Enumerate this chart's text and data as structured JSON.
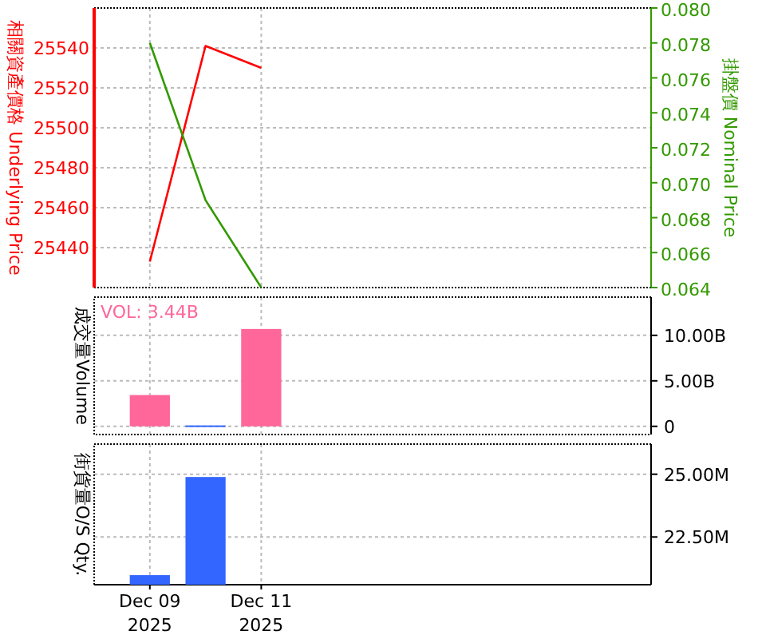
{
  "chart_data": [
    {
      "type": "line",
      "ylabel": "相關資產價格 Underlying Price",
      "y2label": "掛盤價 Nominal Price",
      "x": [
        "2025-12-09",
        "2025-12-10",
        "2025-12-11"
      ],
      "xlim": [
        "2025-12-08",
        "2025-12-18"
      ],
      "xticks": [
        {
          "value": "2025-12-09",
          "label": null
        },
        {
          "value": "2025-12-11",
          "label": null
        }
      ],
      "ylim": [
        25420,
        25560
      ],
      "yticks": [
        25440,
        25460,
        25480,
        25500,
        25520,
        25540
      ],
      "y2lim": [
        0.064,
        0.08
      ],
      "y2ticks": [
        {
          "value": 0.064,
          "label": "0.064"
        },
        {
          "value": 0.066,
          "label": "0.066"
        },
        {
          "value": 0.068,
          "label": "0.068"
        },
        {
          "value": 0.07,
          "label": "0.070"
        },
        {
          "value": 0.072,
          "label": "0.072"
        },
        {
          "value": 0.074,
          "label": "0.074"
        },
        {
          "value": 0.076,
          "label": "0.076"
        },
        {
          "value": 0.078,
          "label": "0.078"
        },
        {
          "value": 0.08,
          "label": "0.080"
        }
      ],
      "grid": true,
      "tick_labels": "y",
      "series": [
        {
          "color": "#ff0000",
          "values": [
            25433,
            25541,
            25530
          ]
        },
        {
          "color": "#339900",
          "axis": "y2",
          "values": [
            0.078,
            0.069,
            0.064
          ]
        }
      ]
    },
    {
      "type": "bar",
      "ylabel": "成交量Volume",
      "annotations": [
        "VOL: 3.44B"
      ],
      "x": [
        "2025-12-09",
        "2025-12-10",
        "2025-12-11"
      ],
      "xlim": [
        "2025-12-08",
        "2025-12-18"
      ],
      "xticks": [
        {
          "value": "2025-12-09",
          "label": null
        },
        {
          "value": "2025-12-11",
          "label": null
        }
      ],
      "ylim": [
        -0.9,
        14.2
      ],
      "yticks": [
        0,
        {
          "value": 5,
          "label": "5.00B"
        },
        {
          "value": 10,
          "label": "10.00B"
        }
      ],
      "grid": true,
      "tick_labels": "y",
      "values": [
        3.44,
        0.1,
        10.7
      ],
      "colors": [
        "#ff6699",
        "#3366ff",
        "#ff6699"
      ]
    },
    {
      "type": "bar",
      "ylabel": "街貨量O/S Qty.",
      "x": [
        "2025-12-09",
        "2025-12-10"
      ],
      "xlim": [
        "2025-12-08",
        "2025-12-18"
      ],
      "xticks": [
        {
          "value": "2025-12-09",
          "label": "Dec 09\n2025"
        },
        {
          "value": "2025-12-11",
          "label": "Dec 11\n2025"
        }
      ],
      "ylim": [
        20.6,
        26.2
      ],
      "yticks": [
        {
          "value": 22.5,
          "label": "22.50M"
        },
        {
          "value": 25,
          "label": "25.00M"
        }
      ],
      "grid": true,
      "values": [
        20.98,
        24.89
      ],
      "colors": [
        "#3366ff",
        "#3366ff"
      ]
    }
  ]
}
